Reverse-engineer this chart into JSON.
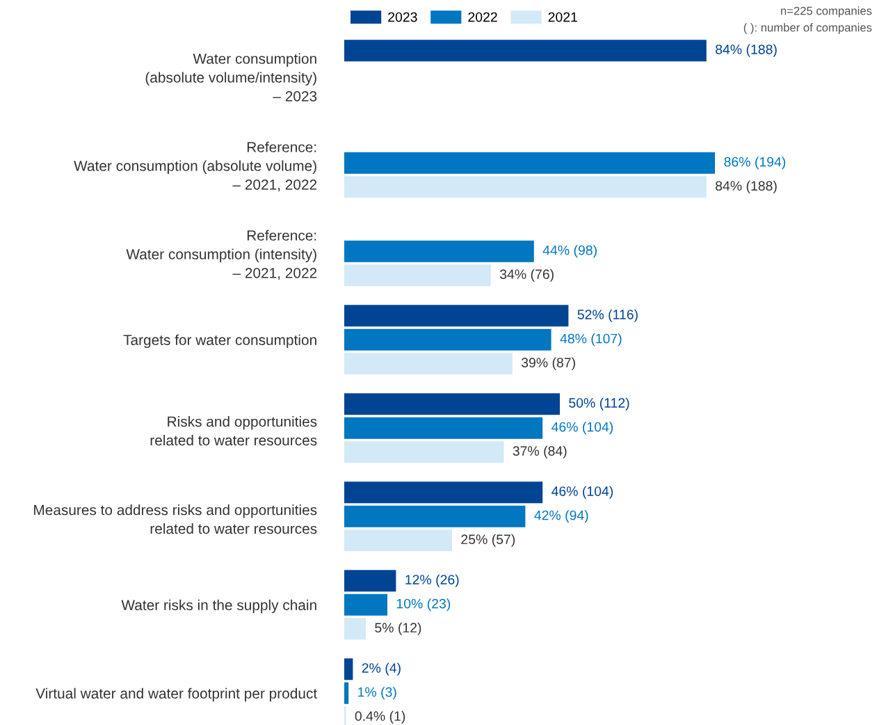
{
  "chart_data": {
    "type": "bar",
    "orientation": "horizontal",
    "categories": [
      "Water consumption\n(absolute volume/intensity)\n– 2023",
      "Reference:\nWater consumption (absolute volume)\n– 2021, 2022",
      "Reference:\nWater consumption (intensity)\n– 2021, 2022",
      "Targets for water consumption",
      "Risks and opportunities\nrelated to water resources",
      "Measures to address risks and opportunities\nrelated to water resources",
      "Water risks in the supply chain",
      "Virtual water and water footprint per product"
    ],
    "series": [
      {
        "name": "2023",
        "color": "#004494",
        "values": [
          84,
          null,
          null,
          52,
          50,
          46,
          12,
          2
        ],
        "value_labels": [
          "84% (188)",
          null,
          null,
          "52% (116)",
          "50% (112)",
          "46% (104)",
          "12% (26)",
          "2% (4)"
        ]
      },
      {
        "name": "2022",
        "color": "#0077c0",
        "values": [
          null,
          86,
          44,
          48,
          46,
          42,
          10,
          1
        ],
        "value_labels": [
          null,
          "86% (194)",
          "44% (98)",
          "48% (107)",
          "46% (104)",
          "42% (94)",
          "10% (23)",
          "1% (3)"
        ]
      },
      {
        "name": "2021",
        "color": "#d3e9f7",
        "values": [
          null,
          84,
          34,
          39,
          37,
          25,
          5,
          0.4
        ],
        "value_labels": [
          null,
          "84% (188)",
          "34% (76)",
          "39% (87)",
          "37% (84)",
          "25% (57)",
          "5% (12)",
          "0.4% (1)"
        ]
      }
    ],
    "tick_labels": "y",
    "legend": "top",
    "grid": false,
    "annotations": [
      "n=225 companies",
      "( ): number of companies"
    ]
  }
}
